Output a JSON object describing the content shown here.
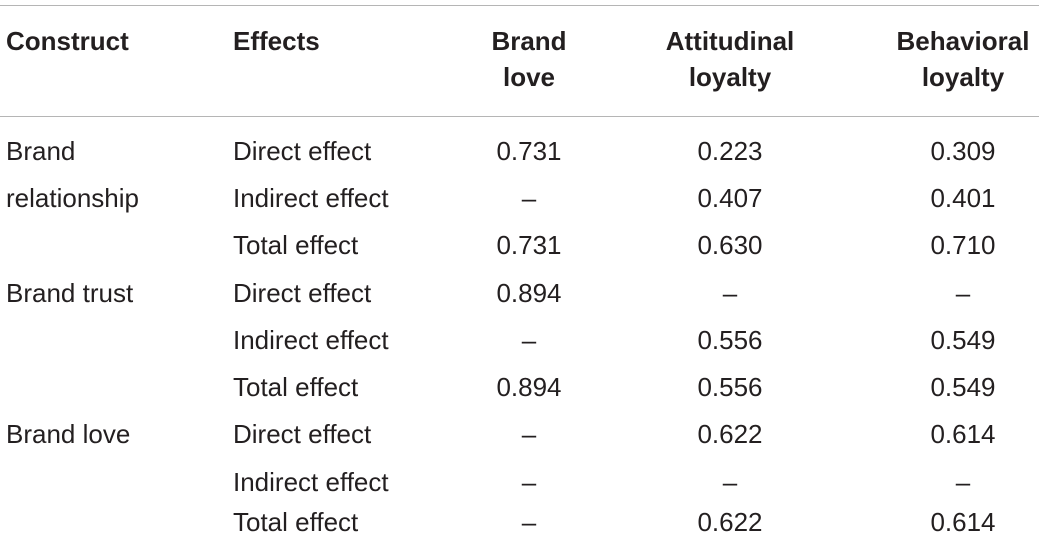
{
  "table": {
    "headers": {
      "construct": "Construct",
      "effects": "Effects",
      "brand_love": [
        "Brand",
        "love"
      ],
      "attitudinal_loyalty": [
        "Attitudinal",
        "loyalty"
      ],
      "behavioral_loyalty": [
        "Behavioral",
        "loyalty"
      ]
    },
    "rows": [
      {
        "construct": "Brand",
        "effect": "Direct effect",
        "brand_love": "0.731",
        "attitudinal_loyalty": "0.223",
        "behavioral_loyalty": "0.309"
      },
      {
        "construct": "relationship",
        "effect": "Indirect effect",
        "brand_love": "–",
        "attitudinal_loyalty": "0.407",
        "behavioral_loyalty": "0.401"
      },
      {
        "construct": "",
        "effect": "Total effect",
        "brand_love": "0.731",
        "attitudinal_loyalty": "0.630",
        "behavioral_loyalty": "0.710"
      },
      {
        "construct": "Brand trust",
        "effect": "Direct effect",
        "brand_love": "0.894",
        "attitudinal_loyalty": "–",
        "behavioral_loyalty": "–"
      },
      {
        "construct": "",
        "effect": "Indirect effect",
        "brand_love": "–",
        "attitudinal_loyalty": "0.556",
        "behavioral_loyalty": "0.549"
      },
      {
        "construct": "",
        "effect": "Total effect",
        "brand_love": "0.894",
        "attitudinal_loyalty": "0.556",
        "behavioral_loyalty": "0.549"
      },
      {
        "construct": "Brand love",
        "effect": "Direct effect",
        "brand_love": "–",
        "attitudinal_loyalty": "0.622",
        "behavioral_loyalty": "0.614"
      },
      {
        "construct": "",
        "effect": "Indirect effect",
        "brand_love": "–",
        "attitudinal_loyalty": "–",
        "behavioral_loyalty": "–"
      },
      {
        "construct": "",
        "effect": "Total effect",
        "brand_love": "–",
        "attitudinal_loyalty": "0.622",
        "behavioral_loyalty": "0.614"
      }
    ]
  }
}
